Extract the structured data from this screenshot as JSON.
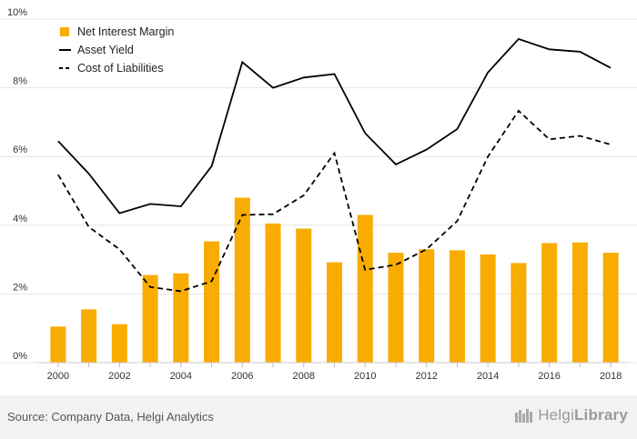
{
  "chart_data": {
    "type": "bar+line",
    "categories": [
      "2000",
      "2001",
      "2002",
      "2003",
      "2004",
      "2005",
      "2006",
      "2007",
      "2008",
      "2009",
      "2010",
      "2011",
      "2012",
      "2013",
      "2014",
      "2015",
      "2016",
      "2017",
      "2018"
    ],
    "x_tick_labels": [
      "2000",
      "2002",
      "2004",
      "2006",
      "2008",
      "2010",
      "2012",
      "2014",
      "2016",
      "2018"
    ],
    "y_tick_labels": [
      "0%",
      "2%",
      "4%",
      "6%",
      "8%",
      "10%"
    ],
    "ylim": [
      0,
      10
    ],
    "grid": "horizontal",
    "legend_position": "top-left",
    "series": [
      {
        "name": "Net Interest Margin",
        "type": "bar",
        "color": "#f9ac00",
        "values": [
          1.05,
          1.55,
          1.12,
          2.55,
          2.6,
          3.53,
          4.8,
          4.05,
          3.9,
          2.92,
          4.3,
          3.2,
          3.3,
          3.27,
          3.15,
          2.9,
          3.48,
          3.5,
          3.2
        ]
      },
      {
        "name": "Asset Yield",
        "type": "line",
        "style": "solid",
        "color": "#000000",
        "values": [
          6.45,
          5.5,
          4.35,
          4.62,
          4.55,
          5.72,
          8.75,
          8.0,
          8.3,
          8.4,
          6.68,
          5.77,
          6.2,
          6.8,
          8.45,
          9.42,
          9.12,
          9.05,
          8.58
        ]
      },
      {
        "name": "Cost of Liabilities",
        "type": "line",
        "style": "dashed",
        "color": "#000000",
        "values": [
          5.47,
          3.95,
          3.3,
          2.2,
          2.08,
          2.37,
          4.3,
          4.32,
          4.87,
          6.1,
          2.7,
          2.85,
          3.3,
          4.12,
          6.0,
          7.33,
          6.5,
          6.6,
          6.35
        ]
      }
    ]
  },
  "footer": {
    "source": "Source: Company Data, Helgi Analytics",
    "logo_text_light": "Helgi",
    "logo_text_bold": "Library"
  },
  "colors": {
    "bar": "#f9ac00",
    "line": "#000000",
    "grid": "#e4e4e4",
    "footer_bg": "#f2f2f2"
  }
}
